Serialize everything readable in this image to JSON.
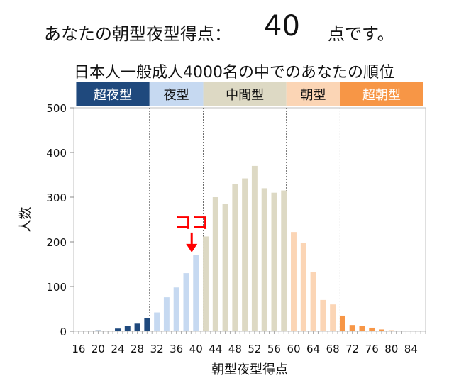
{
  "headline": {
    "prefix": "あなたの朝型夜型得点：",
    "score": "40",
    "suffix": "点です。"
  },
  "chart_data": {
    "type": "bar",
    "subtitle": "日本人一般成人4000名の中でのあなたの順位",
    "xlabel": "朝型夜型得点",
    "ylabel": "人数",
    "ylim": [
      0,
      500
    ],
    "yticks": [
      0,
      100,
      200,
      300,
      400,
      500
    ],
    "xtick_labels": [
      "16",
      "20",
      "24",
      "28",
      "32",
      "36",
      "40",
      "44",
      "48",
      "52",
      "56",
      "60",
      "64",
      "68",
      "72",
      "76",
      "80",
      "84"
    ],
    "x": [
      16,
      17,
      18,
      19,
      20,
      21,
      22,
      23,
      24,
      25,
      26,
      27,
      28,
      29,
      30,
      31,
      32,
      33,
      34,
      35,
      36,
      37,
      38,
      39,
      40,
      41,
      42,
      43,
      44,
      45,
      46,
      47,
      48,
      49,
      50,
      51,
      52,
      53,
      54,
      55,
      56,
      57,
      58,
      59,
      60,
      61,
      62,
      63,
      64,
      65,
      66,
      67,
      68,
      69,
      70,
      71,
      72,
      73,
      74,
      75,
      76,
      77,
      78,
      79,
      80,
      81,
      82,
      83,
      84,
      85,
      86
    ],
    "values": [
      0,
      0,
      0,
      0,
      2,
      0,
      0,
      0,
      6,
      0,
      12,
      0,
      17,
      0,
      30,
      0,
      42,
      0,
      76,
      0,
      98,
      0,
      130,
      0,
      170,
      0,
      212,
      0,
      300,
      0,
      285,
      0,
      330,
      0,
      342,
      0,
      370,
      0,
      320,
      0,
      310,
      0,
      315,
      0,
      222,
      0,
      197,
      0,
      132,
      0,
      70,
      0,
      60,
      0,
      35,
      0,
      14,
      0,
      12,
      0,
      8,
      0,
      4,
      0,
      2,
      0,
      0,
      0,
      0,
      0,
      0
    ],
    "categories": [
      {
        "label": "超夜型",
        "range": [
          16,
          30
        ],
        "color": "#1f497d",
        "text_color": "#ffffff"
      },
      {
        "label": "夜型",
        "range": [
          31,
          41
        ],
        "color": "#c6d9f1",
        "text_color": "#111111"
      },
      {
        "label": "中間型",
        "range": [
          42,
          58
        ],
        "color": "#ddd9c4",
        "text_color": "#111111"
      },
      {
        "label": "朝型",
        "range": [
          59,
          69
        ],
        "color": "#fbd5b5",
        "text_color": "#111111"
      },
      {
        "label": "超朝型",
        "range": [
          70,
          86
        ],
        "color": "#f79646",
        "text_color": "#ffffff"
      }
    ],
    "marker": {
      "label": "ココ",
      "x": 40,
      "color": "#ff0000"
    }
  }
}
